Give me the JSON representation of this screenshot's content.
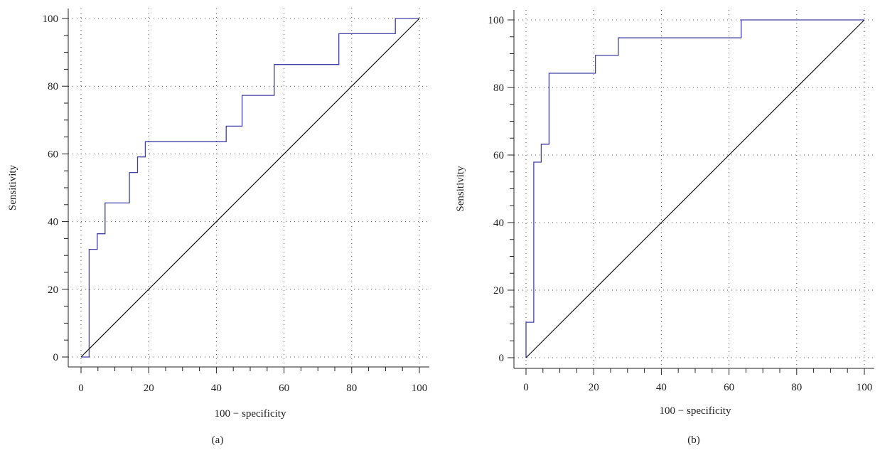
{
  "panels_caption": [
    "(a)",
    "(b)"
  ],
  "colors": {
    "roc": "#4040a8",
    "diagonal": "#111111",
    "grid": "#555555",
    "axis": "#222222"
  },
  "chart_data": [
    {
      "type": "line",
      "panel_label": "(a)",
      "xlabel": "100 − specificity",
      "ylabel": "Sensitivity",
      "xlim": [
        0,
        100
      ],
      "ylim": [
        0,
        100
      ],
      "x_ticks": [
        "0",
        "20",
        "40",
        "60",
        "80",
        "100"
      ],
      "y_ticks": [
        "0",
        "20",
        "40",
        "60",
        "80",
        "100"
      ],
      "grid": true,
      "series": [
        {
          "role": "roc",
          "step": true,
          "x": [
            0,
            2.4,
            2.4,
            2.4,
            4.8,
            4.8,
            7.1,
            7.1,
            14.3,
            14.3,
            16.7,
            16.7,
            19.0,
            19.0,
            42.9,
            42.9,
            47.6,
            47.6,
            57.1,
            57.1,
            76.2,
            76.2,
            92.9,
            92.9,
            100
          ],
          "y": [
            0,
            0,
            2,
            31.8,
            31.8,
            36.4,
            36.4,
            45.5,
            45.5,
            54.5,
            54.5,
            59.1,
            59.1,
            63.6,
            63.6,
            68.2,
            68.2,
            77.3,
            77.3,
            86.4,
            86.4,
            95.5,
            95.5,
            100,
            100
          ]
        },
        {
          "role": "reference",
          "x": [
            0,
            100
          ],
          "y": [
            0,
            100
          ]
        }
      ]
    },
    {
      "type": "line",
      "panel_label": "(b)",
      "xlabel": "100 − specificity",
      "ylabel": "Sensitivity",
      "xlim": [
        0,
        100
      ],
      "ylim": [
        0,
        100
      ],
      "x_ticks": [
        "0",
        "20",
        "40",
        "60",
        "80",
        "100"
      ],
      "y_ticks": [
        "0",
        "20",
        "40",
        "60",
        "80",
        "100"
      ],
      "grid": true,
      "series": [
        {
          "role": "roc",
          "step": true,
          "x": [
            0,
            0,
            2.3,
            2.3,
            4.5,
            4.5,
            6.8,
            6.8,
            20.5,
            20.5,
            27.3,
            27.3,
            63.6,
            63.6,
            100
          ],
          "y": [
            0,
            10.5,
            10.5,
            57.9,
            57.9,
            63.2,
            63.2,
            84.2,
            84.2,
            89.5,
            89.5,
            94.7,
            94.7,
            100,
            100
          ]
        },
        {
          "role": "reference",
          "x": [
            0,
            100
          ],
          "y": [
            0,
            100
          ]
        }
      ]
    }
  ]
}
